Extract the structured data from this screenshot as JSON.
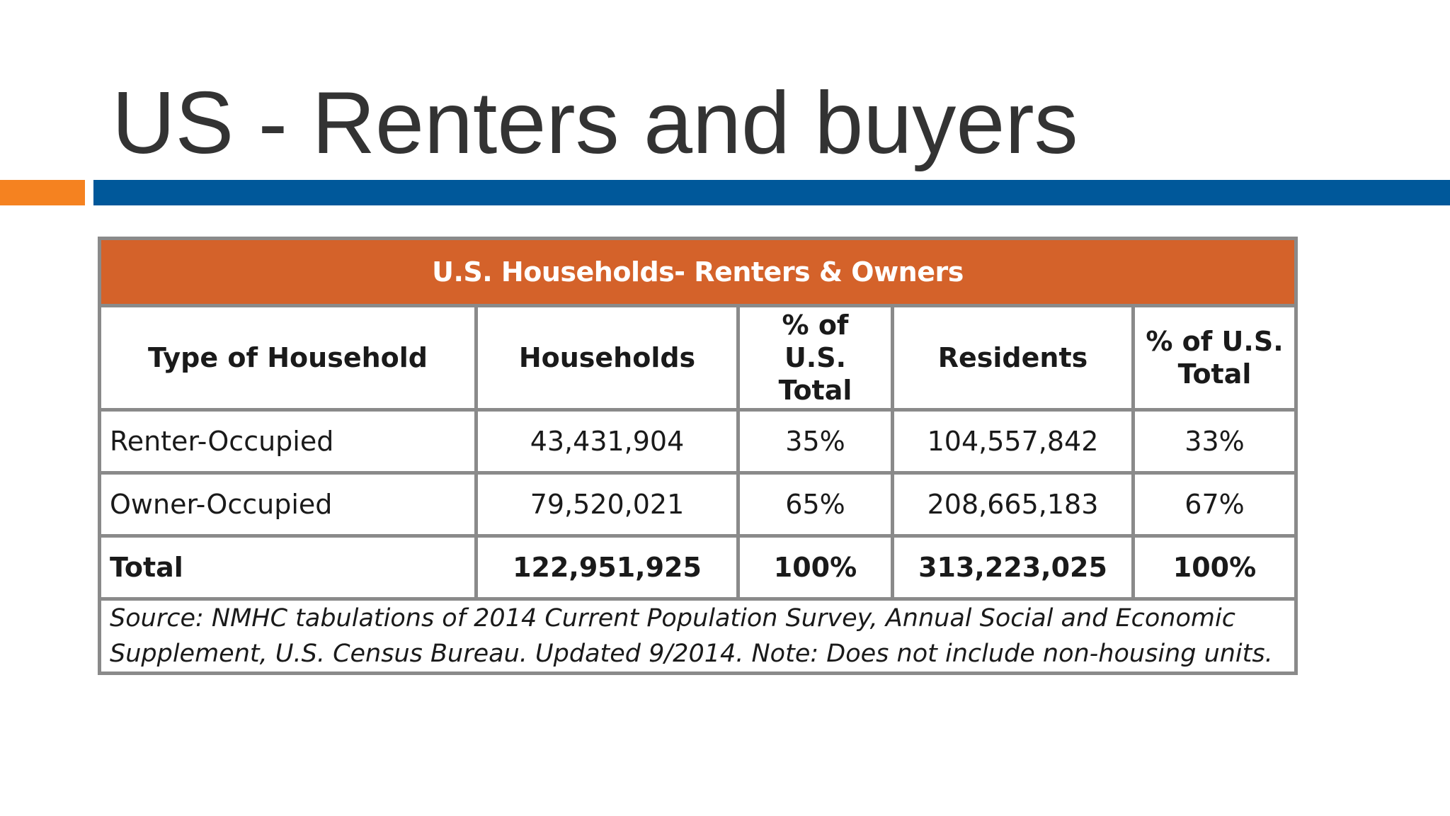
{
  "slide": {
    "title": "US - Renters and buyers",
    "colors": {
      "accent_orange": "#f58220",
      "accent_blue": "#00589a",
      "table_header_bg": "#d4622a"
    }
  },
  "table": {
    "caption": "U.S. Households- Renters & Owners",
    "columns": [
      "Type of Household",
      "Households",
      "% of U.S. Total",
      "Residents",
      "% of U.S. Total"
    ],
    "rows": [
      {
        "type": "Renter-Occupied",
        "households": "43,431,904",
        "households_pct": "35%",
        "residents": "104,557,842",
        "residents_pct": "33%"
      },
      {
        "type": "Owner-Occupied",
        "households": "79,520,021",
        "households_pct": "65%",
        "residents": "208,665,183",
        "residents_pct": "67%"
      }
    ],
    "total": {
      "type": "Total",
      "households": "122,951,925",
      "households_pct": "100%",
      "residents": "313,223,025",
      "residents_pct": "100%"
    },
    "source": "Source: NMHC tabulations of 2014 Current Population Survey, Annual Social and Economic Supplement, U.S. Census Bureau. Updated 9/2014. Note: Does not include non-housing units."
  }
}
